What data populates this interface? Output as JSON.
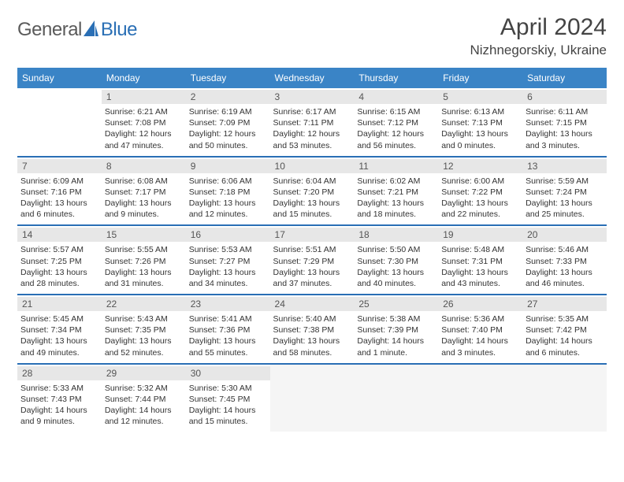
{
  "logo": {
    "text1": "General",
    "text2": "Blue",
    "color_general": "#5a5a5a",
    "color_blue": "#2a6fb5"
  },
  "title": "April 2024",
  "location": "Nizhnegorskiy, Ukraine",
  "header_bg": "#3a84c6",
  "weekdays": [
    "Sunday",
    "Monday",
    "Tuesday",
    "Wednesday",
    "Thursday",
    "Friday",
    "Saturday"
  ],
  "weeks": [
    [
      null,
      {
        "n": "1",
        "sr": "6:21 AM",
        "ss": "7:08 PM",
        "dl": "12 hours and 47 minutes."
      },
      {
        "n": "2",
        "sr": "6:19 AM",
        "ss": "7:09 PM",
        "dl": "12 hours and 50 minutes."
      },
      {
        "n": "3",
        "sr": "6:17 AM",
        "ss": "7:11 PM",
        "dl": "12 hours and 53 minutes."
      },
      {
        "n": "4",
        "sr": "6:15 AM",
        "ss": "7:12 PM",
        "dl": "12 hours and 56 minutes."
      },
      {
        "n": "5",
        "sr": "6:13 AM",
        "ss": "7:13 PM",
        "dl": "13 hours and 0 minutes."
      },
      {
        "n": "6",
        "sr": "6:11 AM",
        "ss": "7:15 PM",
        "dl": "13 hours and 3 minutes."
      }
    ],
    [
      {
        "n": "7",
        "sr": "6:09 AM",
        "ss": "7:16 PM",
        "dl": "13 hours and 6 minutes."
      },
      {
        "n": "8",
        "sr": "6:08 AM",
        "ss": "7:17 PM",
        "dl": "13 hours and 9 minutes."
      },
      {
        "n": "9",
        "sr": "6:06 AM",
        "ss": "7:18 PM",
        "dl": "13 hours and 12 minutes."
      },
      {
        "n": "10",
        "sr": "6:04 AM",
        "ss": "7:20 PM",
        "dl": "13 hours and 15 minutes."
      },
      {
        "n": "11",
        "sr": "6:02 AM",
        "ss": "7:21 PM",
        "dl": "13 hours and 18 minutes."
      },
      {
        "n": "12",
        "sr": "6:00 AM",
        "ss": "7:22 PM",
        "dl": "13 hours and 22 minutes."
      },
      {
        "n": "13",
        "sr": "5:59 AM",
        "ss": "7:24 PM",
        "dl": "13 hours and 25 minutes."
      }
    ],
    [
      {
        "n": "14",
        "sr": "5:57 AM",
        "ss": "7:25 PM",
        "dl": "13 hours and 28 minutes."
      },
      {
        "n": "15",
        "sr": "5:55 AM",
        "ss": "7:26 PM",
        "dl": "13 hours and 31 minutes."
      },
      {
        "n": "16",
        "sr": "5:53 AM",
        "ss": "7:27 PM",
        "dl": "13 hours and 34 minutes."
      },
      {
        "n": "17",
        "sr": "5:51 AM",
        "ss": "7:29 PM",
        "dl": "13 hours and 37 minutes."
      },
      {
        "n": "18",
        "sr": "5:50 AM",
        "ss": "7:30 PM",
        "dl": "13 hours and 40 minutes."
      },
      {
        "n": "19",
        "sr": "5:48 AM",
        "ss": "7:31 PM",
        "dl": "13 hours and 43 minutes."
      },
      {
        "n": "20",
        "sr": "5:46 AM",
        "ss": "7:33 PM",
        "dl": "13 hours and 46 minutes."
      }
    ],
    [
      {
        "n": "21",
        "sr": "5:45 AM",
        "ss": "7:34 PM",
        "dl": "13 hours and 49 minutes."
      },
      {
        "n": "22",
        "sr": "5:43 AM",
        "ss": "7:35 PM",
        "dl": "13 hours and 52 minutes."
      },
      {
        "n": "23",
        "sr": "5:41 AM",
        "ss": "7:36 PM",
        "dl": "13 hours and 55 minutes."
      },
      {
        "n": "24",
        "sr": "5:40 AM",
        "ss": "7:38 PM",
        "dl": "13 hours and 58 minutes."
      },
      {
        "n": "25",
        "sr": "5:38 AM",
        "ss": "7:39 PM",
        "dl": "14 hours and 1 minute."
      },
      {
        "n": "26",
        "sr": "5:36 AM",
        "ss": "7:40 PM",
        "dl": "14 hours and 3 minutes."
      },
      {
        "n": "27",
        "sr": "5:35 AM",
        "ss": "7:42 PM",
        "dl": "14 hours and 6 minutes."
      }
    ],
    [
      {
        "n": "28",
        "sr": "5:33 AM",
        "ss": "7:43 PM",
        "dl": "14 hours and 9 minutes."
      },
      {
        "n": "29",
        "sr": "5:32 AM",
        "ss": "7:44 PM",
        "dl": "14 hours and 12 minutes."
      },
      {
        "n": "30",
        "sr": "5:30 AM",
        "ss": "7:45 PM",
        "dl": "14 hours and 15 minutes."
      },
      null,
      null,
      null,
      null
    ]
  ],
  "labels": {
    "sunrise": "Sunrise: ",
    "sunset": "Sunset: ",
    "daylight": "Daylight: "
  }
}
